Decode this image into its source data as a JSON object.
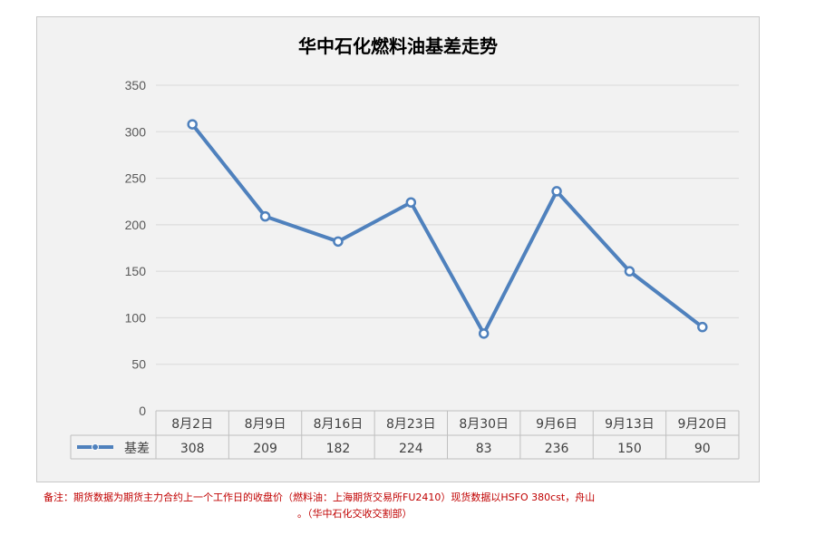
{
  "chart_data": {
    "type": "line",
    "title": "华中石化燃料油基差走势",
    "categories": [
      "8月2日",
      "8月9日",
      "8月16日",
      "8月23日",
      "8月30日",
      "9月6日",
      "9月13日",
      "9月20日"
    ],
    "series": [
      {
        "name": "基差",
        "values": [
          308,
          209,
          182,
          224,
          83,
          236,
          150,
          90
        ],
        "color": "#4f81bd"
      }
    ],
    "ylim": [
      0,
      350
    ],
    "yticks": [
      0,
      50,
      100,
      150,
      200,
      250,
      300,
      350
    ],
    "grid": true,
    "data_table": true
  },
  "footnote": {
    "line1": "备注：期货数据为期货主力合约上一个工作日的收盘价（燃料油：上海期货交易所FU2410）现货数据以HSFO 380cst，舟山",
    "line2": "。（华中石化交收交割部）"
  }
}
